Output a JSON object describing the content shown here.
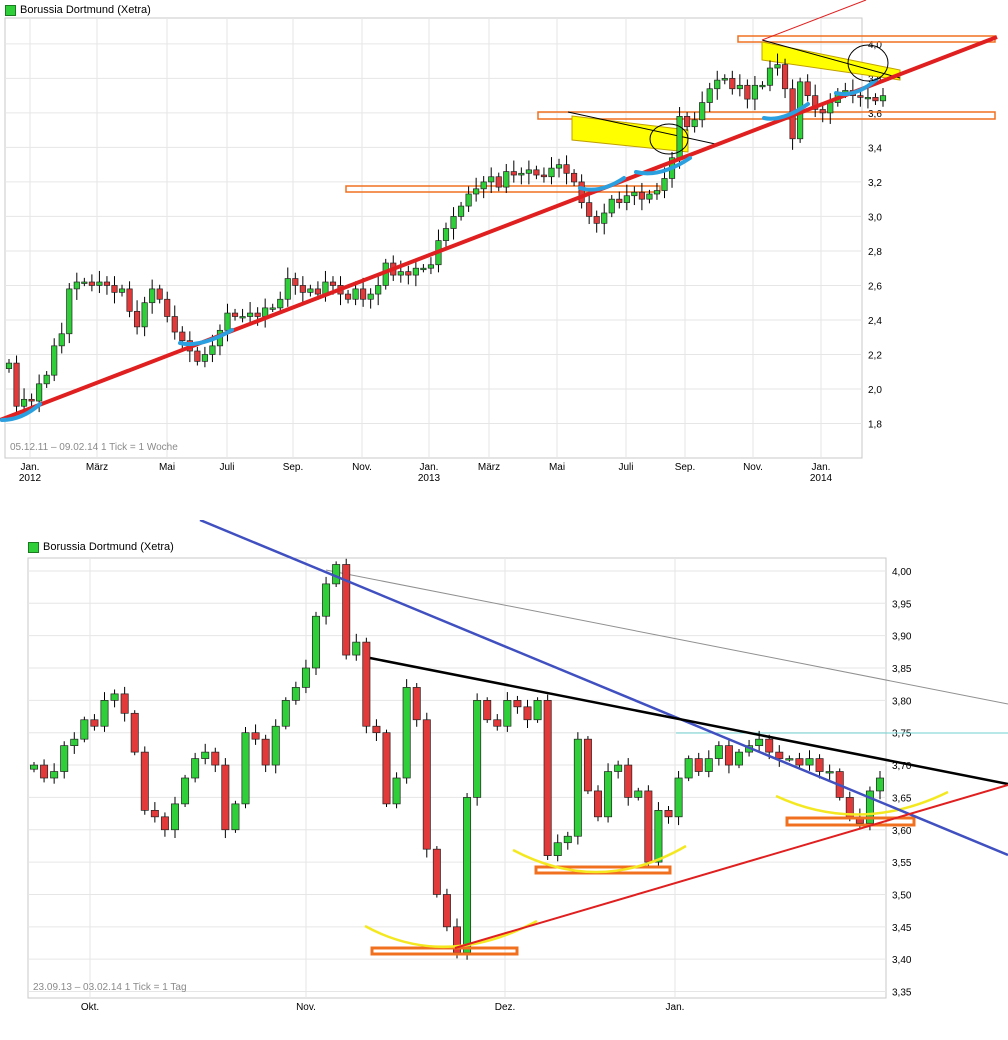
{
  "colors": {
    "up": "#2fcf3a",
    "down": "#e23a3a",
    "grid": "#e6e6e6",
    "wick": "#000000",
    "trend_red": "#e02020",
    "trend_blue": "#4050c0",
    "hilite_yellow": "#ffff00",
    "swoosh_blue": "#2aa0e0",
    "box_orange": "#f07020"
  },
  "chart_data": [
    {
      "type": "candlestick",
      "title": "Borussia Dortmund (Xetra)",
      "info": "05.12.11 – 09.02.14   1 Tick = 1 Woche",
      "ylim": [
        1.6,
        4.15
      ],
      "yticks": [
        "1,8",
        "2,0",
        "2,2",
        "2,4",
        "2,6",
        "2,8",
        "3,0",
        "3,2",
        "3,4",
        "3,6",
        "3,8",
        "4,0"
      ],
      "xticks": [
        "Jan.",
        "März",
        "Mai",
        "Juli",
        "Sep.",
        "Nov.",
        "Jan.",
        "März",
        "Mai",
        "Juli",
        "Sep.",
        "Nov.",
        "Jan."
      ],
      "xticks_year": {
        "0": "2012",
        "6": "2013",
        "12": "2014"
      },
      "closes": [
        2.15,
        1.9,
        1.94,
        1.93,
        2.03,
        2.08,
        2.25,
        2.32,
        2.58,
        2.62,
        2.62,
        2.6,
        2.62,
        2.6,
        2.56,
        2.58,
        2.45,
        2.36,
        2.5,
        2.58,
        2.52,
        2.42,
        2.33,
        2.28,
        2.22,
        2.16,
        2.2,
        2.25,
        2.34,
        2.44,
        2.42,
        2.42,
        2.44,
        2.42,
        2.47,
        2.47,
        2.52,
        2.64,
        2.6,
        2.56,
        2.58,
        2.55,
        2.62,
        2.6,
        2.55,
        2.52,
        2.58,
        2.52,
        2.55,
        2.6,
        2.73,
        2.66,
        2.68,
        2.66,
        2.7,
        2.7,
        2.72,
        2.86,
        2.93,
        3.0,
        3.06,
        3.13,
        3.16,
        3.2,
        3.23,
        3.17,
        3.26,
        3.24,
        3.25,
        3.27,
        3.24,
        3.23,
        3.28,
        3.3,
        3.25,
        3.2,
        3.08,
        3.0,
        2.96,
        3.02,
        3.1,
        3.08,
        3.12,
        3.14,
        3.1,
        3.13,
        3.15,
        3.22,
        3.34,
        3.58,
        3.52,
        3.56,
        3.66,
        3.74,
        3.79,
        3.8,
        3.74,
        3.76,
        3.68,
        3.76,
        3.76,
        3.86,
        3.88,
        3.74,
        3.45,
        3.78,
        3.7,
        3.62,
        3.6,
        3.66,
        3.72,
        3.73,
        3.7,
        3.69,
        3.69,
        3.67,
        3.7
      ]
    },
    {
      "type": "candlestick",
      "title": "Borussia Dortmund (Xetra)",
      "info": "23.09.13 – 03.02.14   1 Tick = 1 Tag",
      "ylim": [
        3.34,
        4.02
      ],
      "yticks": [
        "3,35",
        "3,40",
        "3,45",
        "3,50",
        "3,55",
        "3,60",
        "3,65",
        "3,70",
        "3,75",
        "3,80",
        "3,85",
        "3,90",
        "3,95",
        "4,00"
      ],
      "xticks": [
        "Okt.",
        "Nov.",
        "Dez.",
        "Jan."
      ],
      "closes": [
        3.7,
        3.68,
        3.69,
        3.73,
        3.74,
        3.77,
        3.76,
        3.8,
        3.81,
        3.78,
        3.72,
        3.63,
        3.62,
        3.6,
        3.64,
        3.68,
        3.71,
        3.72,
        3.7,
        3.6,
        3.64,
        3.75,
        3.74,
        3.7,
        3.76,
        3.8,
        3.82,
        3.85,
        3.93,
        3.98,
        4.01,
        3.87,
        3.89,
        3.76,
        3.75,
        3.64,
        3.68,
        3.82,
        3.77,
        3.57,
        3.5,
        3.45,
        3.41,
        3.65,
        3.8,
        3.77,
        3.76,
        3.8,
        3.79,
        3.77,
        3.8,
        3.56,
        3.58,
        3.59,
        3.74,
        3.66,
        3.62,
        3.69,
        3.7,
        3.65,
        3.66,
        3.55,
        3.63,
        3.62,
        3.68,
        3.71,
        3.69,
        3.71,
        3.73,
        3.7,
        3.72,
        3.73,
        3.74,
        3.72,
        3.71,
        3.71,
        3.7,
        3.71,
        3.69,
        3.69,
        3.65,
        3.62,
        3.61,
        3.66,
        3.68
      ]
    }
  ]
}
